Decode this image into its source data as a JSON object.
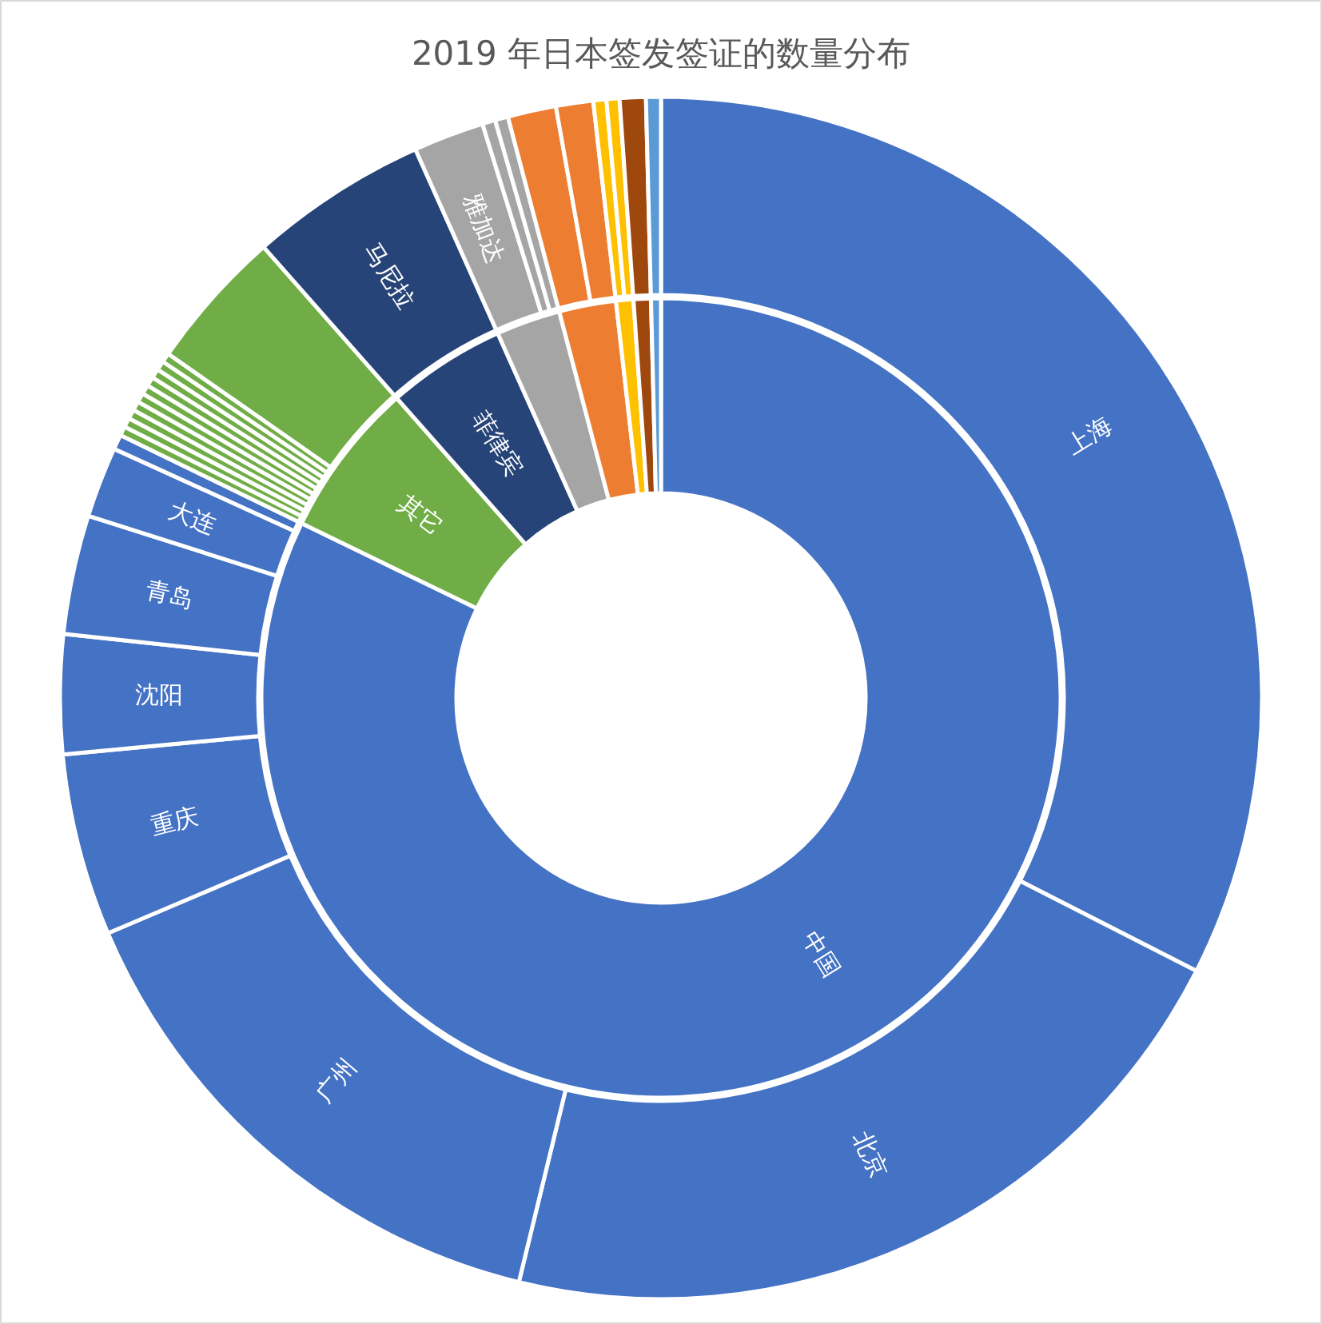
{
  "chart_data": {
    "type": "donut",
    "title": "2019 年日本签发签证的数量分布",
    "series": [
      {
        "value_labels": [
          "中国",
          "其它",
          "菲律宾",
          null,
          null,
          null,
          null,
          null
        ],
        "values": [
          82.2,
          6.3,
          4.8,
          2.6,
          2.3,
          0.7,
          0.7,
          0.4
        ],
        "colors": [
          "#4472c4",
          "#70ad47",
          "#264478",
          "#a5a5a5",
          "#ed7d31",
          "#ffc000",
          "#9e480e",
          "#5b9bd5"
        ]
      },
      {
        "value_labels": [
          "上海",
          "北京",
          "广州",
          "重庆",
          "沈阳",
          "青岛",
          "大连",
          null,
          null,
          null,
          null,
          null,
          null,
          null,
          null,
          null,
          null,
          null,
          null,
          "马尼拉",
          "雅加达",
          null,
          null,
          null,
          null,
          null,
          null,
          null,
          null
        ],
        "values": [
          32.5,
          21.3,
          14.8,
          4.9,
          3.2,
          3.2,
          1.9,
          0.4,
          0.25,
          0.25,
          0.25,
          0.25,
          0.25,
          0.25,
          0.25,
          0.25,
          0.25,
          0.25,
          3.8,
          4.8,
          1.9,
          0.35,
          0.35,
          1.3,
          1.0,
          0.35,
          0.35,
          0.7,
          0.4
        ],
        "colors": [
          "#4472c4",
          "#4472c4",
          "#4472c4",
          "#4472c4",
          "#4472c4",
          "#4472c4",
          "#4472c4",
          "#4472c4",
          "#70ad47",
          "#70ad47",
          "#70ad47",
          "#70ad47",
          "#70ad47",
          "#70ad47",
          "#70ad47",
          "#70ad47",
          "#70ad47",
          "#70ad47",
          "#70ad47",
          "#264478",
          "#a5a5a5",
          "#a5a5a5",
          "#a5a5a5",
          "#ed7d31",
          "#ed7d31",
          "#ffc000",
          "#ffc000",
          "#9e480e",
          "#5b9bd5"
        ]
      }
    ]
  }
}
